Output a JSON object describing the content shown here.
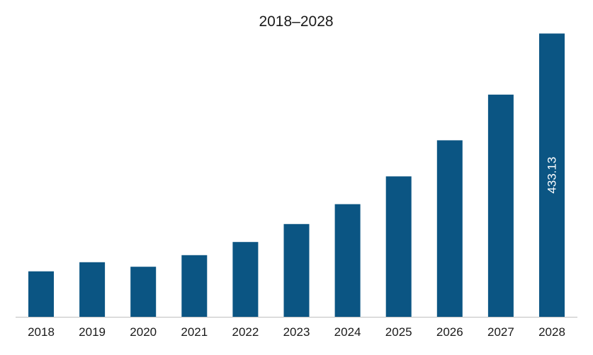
{
  "chart_data": {
    "type": "bar",
    "title": "2018–2028",
    "categories": [
      "2018",
      "2019",
      "2020",
      "2021",
      "2022",
      "2023",
      "2024",
      "2025",
      "2026",
      "2027",
      "2028"
    ],
    "series": [
      {
        "values": [
          69.5,
          83.5,
          76.5,
          94.3,
          114.4,
          141.8,
          172.2,
          214.7,
          269.8,
          339.7,
          433.13
        ],
        "color": "#0b5583",
        "data_labels": [
          "",
          "",
          "",
          "",
          "",
          "",
          "",
          "",
          "",
          "",
          "433.13"
        ]
      }
    ],
    "ylim": [
      0,
      440
    ],
    "grid": false,
    "legend": "none",
    "axis_color": "#bfbfbf"
  }
}
